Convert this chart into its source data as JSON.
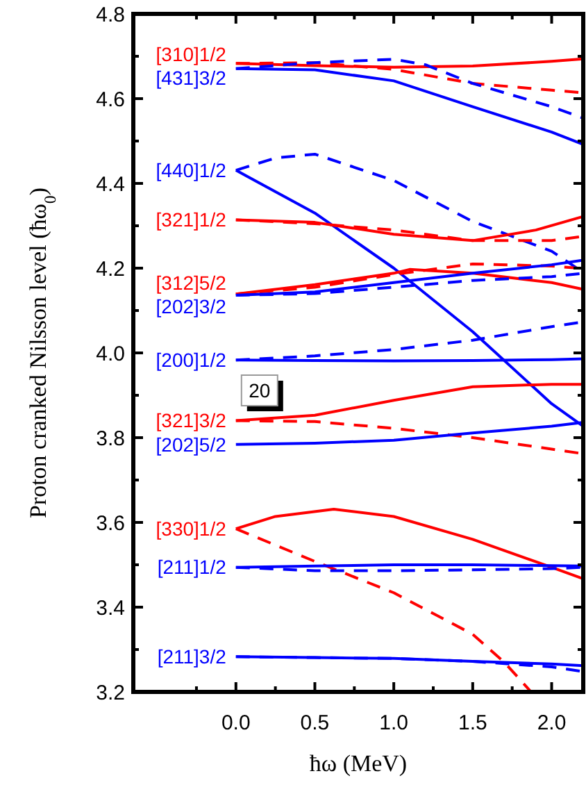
{
  "chart_data": {
    "type": "line",
    "xlabel": "ħω (MeV)",
    "ylabel": "Proton cranked Nilsson level (ħω$_{0}$)",
    "xlim": [
      -0.65,
      2.2
    ],
    "ylim": [
      3.2,
      4.8
    ],
    "xticks": [
      {
        "value": -0.25,
        "label": null
      },
      {
        "value": 0,
        "label": "0.0"
      },
      {
        "value": 0.25,
        "label": null
      },
      {
        "value": 0.5,
        "label": "0.5"
      },
      {
        "value": 0.75,
        "label": null
      },
      {
        "value": 1,
        "label": "1.0"
      },
      {
        "value": 1.25,
        "label": null
      },
      {
        "value": 1.5,
        "label": "1.5"
      },
      {
        "value": 1.75,
        "label": null
      },
      {
        "value": 2,
        "label": "2.0"
      }
    ],
    "yticks": [
      {
        "value": 3.2,
        "label": "3.2"
      },
      {
        "value": 3.3,
        "label": null
      },
      {
        "value": 3.4,
        "label": "3.4"
      },
      {
        "value": 3.5,
        "label": null
      },
      {
        "value": 3.6,
        "label": "3.6"
      },
      {
        "value": 3.7,
        "label": null
      },
      {
        "value": 3.8,
        "label": "3.8"
      },
      {
        "value": 3.9,
        "label": null
      },
      {
        "value": 4,
        "label": "4.0"
      },
      {
        "value": 4.1,
        "label": null
      },
      {
        "value": 4.2,
        "label": "4.2"
      },
      {
        "value": 4.3,
        "label": null
      },
      {
        "value": 4.4,
        "label": "4.4"
      },
      {
        "value": 4.5,
        "label": null
      },
      {
        "value": 4.6,
        "label": "4.6"
      },
      {
        "value": 4.7,
        "label": null
      },
      {
        "value": 4.8,
        "label": "4.8"
      }
    ],
    "grid": false,
    "marker": "none",
    "line_style": "solid",
    "annotations": [
      "20"
    ],
    "series": [
      {
        "name": "[310]1/2",
        "color": "#ff0000",
        "x": [
          0,
          0.5,
          1,
          1.5,
          2,
          2.2
        ],
        "values": [
          4.683,
          4.678,
          4.674,
          4.677,
          4.688,
          4.694
        ]
      },
      {
        "color": "#ff0000",
        "line_style": "dashed",
        "x": [
          0,
          0.5,
          1,
          1.5,
          2,
          2.2
        ],
        "values": [
          4.683,
          4.685,
          4.669,
          4.636,
          4.62,
          4.614
        ]
      },
      {
        "name": "[431]3/2",
        "color": "#0000ff",
        "x": [
          0,
          0.5,
          1,
          1.5,
          2,
          2.2
        ],
        "values": [
          4.671,
          4.668,
          4.642,
          4.581,
          4.521,
          4.492
        ]
      },
      {
        "color": "#0000ff",
        "line_style": "dashed",
        "x": [
          0,
          0.5,
          1,
          1.2,
          1.5,
          2,
          2.2
        ],
        "values": [
          4.671,
          4.685,
          4.693,
          4.68,
          4.636,
          4.581,
          4.554
        ]
      },
      {
        "name": "[440]1/2",
        "color": "#0000ff",
        "x": [
          0,
          0.5,
          1,
          1.5,
          2,
          2.2
        ],
        "values": [
          4.431,
          4.33,
          4.2,
          4.05,
          3.88,
          3.827
        ]
      },
      {
        "color": "#0000ff",
        "line_style": "dashed",
        "x": [
          0,
          0.25,
          0.5,
          1,
          1.5,
          2,
          2.2
        ],
        "values": [
          4.431,
          4.46,
          4.469,
          4.407,
          4.31,
          4.24,
          4.19
        ]
      },
      {
        "name": "[321]1/2",
        "color": "#ff0000",
        "x": [
          0,
          0.5,
          1,
          1.5,
          1.9,
          2.2
        ],
        "values": [
          4.314,
          4.308,
          4.28,
          4.265,
          4.29,
          4.322
        ]
      },
      {
        "color": "#ff0000",
        "line_style": "dashed",
        "x": [
          0,
          0.5,
          1,
          1.5,
          2,
          2.2
        ],
        "values": [
          4.314,
          4.305,
          4.29,
          4.265,
          4.265,
          4.275
        ]
      },
      {
        "name": "[312]5/2",
        "color": "#ff0000",
        "x": [
          0,
          0.5,
          1,
          1.1,
          1.5,
          2,
          2.2
        ],
        "values": [
          4.139,
          4.161,
          4.188,
          4.197,
          4.188,
          4.166,
          4.15
        ]
      },
      {
        "color": "#ff0000",
        "line_style": "dashed",
        "x": [
          0,
          0.5,
          1,
          1.5,
          2,
          2.2
        ],
        "values": [
          4.139,
          4.155,
          4.185,
          4.21,
          4.205,
          4.199
        ]
      },
      {
        "name": "[202]3/2",
        "color": "#0000ff",
        "x": [
          0,
          0.5,
          1,
          1.5,
          2,
          2.2
        ],
        "values": [
          4.136,
          4.144,
          4.166,
          4.188,
          4.208,
          4.219
        ]
      },
      {
        "color": "#0000ff",
        "line_style": "dashed",
        "x": [
          0,
          0.5,
          1,
          1.5,
          2,
          2.2
        ],
        "values": [
          4.136,
          4.14,
          4.155,
          4.171,
          4.18,
          4.188
        ]
      },
      {
        "name": "[200]1/2",
        "color": "#0000ff",
        "x": [
          0,
          0.5,
          1,
          1.5,
          2,
          2.2
        ],
        "values": [
          3.983,
          3.982,
          3.981,
          3.982,
          3.984,
          3.986
        ]
      },
      {
        "color": "#0000ff",
        "line_style": "dashed",
        "x": [
          0,
          0.5,
          1,
          1.5,
          2,
          2.2
        ],
        "values": [
          3.983,
          3.993,
          4.008,
          4.03,
          4.062,
          4.073
        ]
      },
      {
        "name": "[321]3/2",
        "color": "#ff0000",
        "x": [
          0,
          0.5,
          1,
          1.5,
          2,
          2.2
        ],
        "values": [
          3.84,
          3.853,
          3.888,
          3.92,
          3.926,
          3.926
        ]
      },
      {
        "color": "#ff0000",
        "line_style": "dashed",
        "x": [
          0,
          0.5,
          1,
          1.5,
          2,
          2.2
        ],
        "values": [
          3.84,
          3.838,
          3.822,
          3.8,
          3.773,
          3.762
        ]
      },
      {
        "name": "[202]5/2",
        "color": "#0000ff",
        "x": [
          0,
          0.5,
          1,
          1.5,
          2,
          2.2
        ],
        "values": [
          3.784,
          3.787,
          3.794,
          3.811,
          3.827,
          3.836
        ]
      },
      {
        "name": "[330]1/2",
        "color": "#ff0000",
        "x": [
          0,
          0.25,
          0.62,
          1,
          1.5,
          2,
          2.2
        ],
        "values": [
          3.585,
          3.614,
          3.631,
          3.614,
          3.56,
          3.494,
          3.467
        ]
      },
      {
        "color": "#ff0000",
        "line_style": "dashed",
        "x": [
          0,
          0.5,
          1,
          1.5,
          1.7,
          1.87
        ],
        "values": [
          3.585,
          3.508,
          3.434,
          3.336,
          3.27,
          3.2
        ]
      },
      {
        "name": "[211]1/2",
        "color": "#0000ff",
        "x": [
          0,
          0.5,
          1,
          1.5,
          2,
          2.2
        ],
        "values": [
          3.494,
          3.497,
          3.5,
          3.5,
          3.498,
          3.497
        ]
      },
      {
        "color": "#0000ff",
        "line_style": "dashed",
        "x": [
          0,
          0.5,
          1,
          1.5,
          2,
          2.2
        ],
        "values": [
          3.494,
          3.486,
          3.486,
          3.488,
          3.491,
          3.494
        ]
      },
      {
        "name": "[211]3/2",
        "color": "#0000ff",
        "x": [
          0,
          0.5,
          1,
          1.5,
          2,
          2.2
        ],
        "values": [
          3.283,
          3.281,
          3.279,
          3.272,
          3.266,
          3.262
        ]
      },
      {
        "color": "#0000ff",
        "line_style": "dashed",
        "x": [
          0,
          0.5,
          1,
          1.5,
          2,
          2.2
        ],
        "values": [
          3.283,
          3.281,
          3.279,
          3.272,
          3.259,
          3.248
        ]
      }
    ]
  }
}
